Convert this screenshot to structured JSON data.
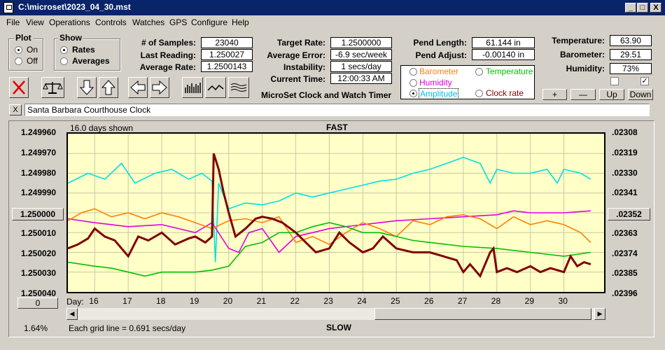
{
  "window": {
    "title": "C:\\microset\\2023_04_30.mst",
    "min": "_",
    "max": "□",
    "close": "X"
  },
  "menu": [
    "File",
    "View",
    "Operations",
    "Controls",
    "Watches",
    "GPS",
    "Configure",
    "Help"
  ],
  "plot_group": {
    "title": "Plot",
    "on": "On",
    "off": "Off"
  },
  "show_group": {
    "title": "Show",
    "rates": "Rates",
    "averages": "Averages"
  },
  "stats": {
    "samples_label": "# of Samples:",
    "samples": "23040",
    "last_label": "Last Reading:",
    "last": "1.250027",
    "avg_label": "Average Rate:",
    "avg": "1.2500143",
    "target_label": "Target Rate:",
    "target": "1.2500000",
    "err_label": "Average Error:",
    "err": "-6.9 sec/week",
    "inst_label": "Instability:",
    "inst": "1 secs/day",
    "time_label": "Current Time:",
    "time": "12:00:33 AM",
    "pend_len_label": "Pend Length:",
    "pend_len": "61.144 in",
    "pend_adj_label": "Pend Adjust:",
    "pend_adj": "-0.00140 in",
    "temp_label": "Temperature:",
    "temp": "63.90",
    "baro_label": "Barometer:",
    "baro": "29.51",
    "hum_label": "Humidity:",
    "hum": "73%"
  },
  "app_caption": "MicroSet Clock and Watch Timer",
  "series_select": {
    "barometer": "Barometer",
    "temperature": "Temperature",
    "humidity": "Humidity",
    "amplitude": "Amplitude",
    "clock_rate": "Clock rate"
  },
  "adjust_buttons": {
    "plus": "+",
    "minus": "—",
    "up": "Up",
    "down": "Down"
  },
  "clock_name": "Santa Barbara Courthouse Clock",
  "close_x": "X",
  "chart_header": {
    "days_shown": "16.0 days shown",
    "fast": "FAST",
    "slow": "SLOW",
    "grid_note": "Each grid line = 0.691 secs/day",
    "percent": "1.64%",
    "day_label": "Day:",
    "center_btn": "1.250000",
    "right_btn": ".02352",
    "zero_btn": "0"
  },
  "colors": {
    "barometer": "#ff8000",
    "temperature": "#00c000",
    "humidity": "#e000e0",
    "amplitude": "#00e0e0",
    "clock_rate": "#800000",
    "plot_bg": "#ffffc8"
  },
  "chart_data": {
    "type": "line",
    "x_ticks": [
      "16",
      "17",
      "18",
      "19",
      "20",
      "21",
      "22",
      "23",
      "24",
      "25",
      "26",
      "27",
      "28",
      "29",
      "30"
    ],
    "y_left_ticks": [
      "1.249960",
      "1.249970",
      "1.249980",
      "1.249990",
      "1.250000",
      "1.250010",
      "1.250020",
      "1.250030",
      "1.250040"
    ],
    "y_right_ticks": [
      ".02308",
      ".02319",
      ".02330",
      ".02341",
      ".02352",
      ".02363",
      ".02374",
      ".02385",
      ".02396"
    ],
    "ylim": [
      1.24996,
      1.25004
    ],
    "xlim": [
      15.2,
      31.2
    ],
    "series": [
      {
        "name": "Amplitude",
        "color": "#00e0e0",
        "x": [
          15.2,
          15.8,
          16.3,
          16.8,
          17.2,
          17.8,
          18.3,
          18.8,
          19.2,
          19.5,
          19.6,
          19.7,
          20.0,
          20.5,
          21.0,
          21.5,
          22.0,
          22.5,
          23.0,
          23.5,
          24.0,
          24.5,
          25.0,
          25.5,
          26.0,
          26.5,
          27.0,
          27.5,
          27.8,
          28.0,
          28.5,
          29.0,
          29.5,
          29.8,
          30.0,
          30.5,
          30.8
        ],
        "y": [
          1.249985,
          1.24998,
          1.249983,
          1.249975,
          1.249985,
          1.24998,
          1.249978,
          1.249983,
          1.24998,
          1.249984,
          1.250025,
          1.249985,
          1.249998,
          1.249995,
          1.249996,
          1.249994,
          1.24999,
          1.249992,
          1.24999,
          1.249988,
          1.249986,
          1.249984,
          1.249983,
          1.24998,
          1.249978,
          1.249975,
          1.249972,
          1.249975,
          1.249985,
          1.249978,
          1.24998,
          1.24998,
          1.249978,
          1.249985,
          1.249978,
          1.24998,
          1.249983
        ]
      },
      {
        "name": "Humidity",
        "color": "#e000e0",
        "x": [
          15.2,
          16.0,
          17.0,
          18.0,
          19.0,
          19.5,
          20.0,
          20.3,
          20.6,
          21.0,
          21.5,
          22.0,
          22.5,
          23.0,
          24.0,
          25.0,
          26.0,
          27.0,
          28.0,
          28.5,
          29.0,
          30.0,
          30.8
        ],
        "y": [
          1.250003,
          1.250005,
          1.250007,
          1.250006,
          1.25001,
          1.250005,
          1.250018,
          1.25002,
          1.25001,
          1.250008,
          1.25002,
          1.250012,
          1.25001,
          1.250008,
          1.250006,
          1.250004,
          1.250003,
          1.250002,
          1.250001,
          1.249999,
          1.25,
          1.25,
          1.249999
        ]
      },
      {
        "name": "Barometer",
        "color": "#ff8000",
        "x": [
          15.2,
          15.6,
          16.0,
          16.5,
          17.0,
          17.5,
          18.0,
          18.5,
          19.0,
          19.5,
          20.0,
          20.5,
          21.0,
          21.5,
          22.0,
          22.5,
          23.0,
          23.5,
          24.0,
          24.5,
          25.0,
          25.5,
          26.0,
          26.5,
          27.0,
          27.5,
          28.0,
          28.5,
          29.0,
          29.5,
          30.0,
          30.5,
          30.8
        ],
        "y": [
          1.250004,
          1.25,
          1.249998,
          1.250002,
          1.25,
          1.250003,
          1.25,
          1.250002,
          1.250005,
          1.250008,
          1.250004,
          1.250003,
          1.250005,
          1.250002,
          1.250015,
          1.250012,
          1.250016,
          1.25001,
          1.250005,
          1.250008,
          1.250012,
          1.250004,
          1.250006,
          1.250002,
          1.250001,
          1.250003,
          1.250008,
          1.250002,
          1.250006,
          1.250004,
          1.250006,
          1.25001,
          1.250015
        ]
      },
      {
        "name": "Temperature",
        "color": "#00c000",
        "x": [
          15.2,
          16.0,
          16.5,
          17.0,
          17.5,
          18.0,
          18.5,
          19.0,
          19.5,
          20.0,
          20.5,
          21.0,
          21.5,
          22.0,
          22.5,
          23.0,
          23.5,
          24.0,
          24.5,
          25.0,
          25.5,
          26.0,
          27.0,
          28.0,
          29.0,
          30.0,
          30.8
        ],
        "y": [
          1.250025,
          1.250027,
          1.250028,
          1.25003,
          1.250032,
          1.25003,
          1.25003,
          1.25003,
          1.250029,
          1.250027,
          1.250017,
          1.250015,
          1.25001,
          1.25001,
          1.250007,
          1.250005,
          1.250007,
          1.25001,
          1.25001,
          1.250012,
          1.250014,
          1.250015,
          1.250017,
          1.250018,
          1.25002,
          1.250022,
          1.25002
        ]
      },
      {
        "name": "Clock rate",
        "color": "#800000",
        "x": [
          15.2,
          15.5,
          15.8,
          16.0,
          16.3,
          16.6,
          17.0,
          17.3,
          17.6,
          18.0,
          18.4,
          18.8,
          19.0,
          19.3,
          19.5,
          19.55,
          19.7,
          19.85,
          20.0,
          20.2,
          20.5,
          20.8,
          21.0,
          21.3,
          21.6,
          22.0,
          22.3,
          22.6,
          23.0,
          23.3,
          23.6,
          24.0,
          24.3,
          24.6,
          25.0,
          25.5,
          26.0,
          26.4,
          26.8,
          27.0,
          27.2,
          27.5,
          27.8,
          27.9,
          28.0,
          28.3,
          28.6,
          29.0,
          29.3,
          29.6,
          30.0,
          30.2,
          30.4,
          30.6,
          30.8
        ],
        "y": [
          1.250018,
          1.250016,
          1.250013,
          1.250008,
          1.250012,
          1.250014,
          1.250022,
          1.250012,
          1.250014,
          1.25001,
          1.250016,
          1.250013,
          1.250012,
          1.250015,
          1.250012,
          1.24997,
          1.249978,
          1.24999,
          1.25,
          1.250012,
          1.250008,
          1.250003,
          1.250002,
          1.250003,
          1.250005,
          1.25001,
          1.250015,
          1.25002,
          1.250018,
          1.25001,
          1.250015,
          1.25002,
          1.250018,
          1.250012,
          1.250018,
          1.25002,
          1.25002,
          1.250022,
          1.250024,
          1.25003,
          1.250026,
          1.250032,
          1.25002,
          1.250018,
          1.25003,
          1.250028,
          1.25003,
          1.250027,
          1.25003,
          1.250028,
          1.25003,
          1.250022,
          1.250027,
          1.250025,
          1.250026
        ]
      }
    ]
  }
}
